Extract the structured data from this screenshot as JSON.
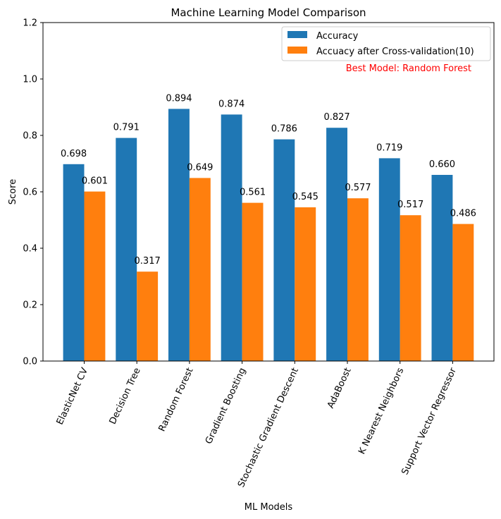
{
  "chart_data": {
    "type": "bar",
    "title": "Machine Learning Model Comparison",
    "xlabel": "ML Models",
    "ylabel": "Score",
    "ylim": [
      0,
      1.2
    ],
    "yticks": [
      "0.0",
      "0.2",
      "0.4",
      "0.6",
      "0.8",
      "1.0",
      "1.2"
    ],
    "grid": false,
    "legend_position": "top-right",
    "categories": [
      "ElasticNet CV",
      "Decision Tree",
      "Random Forest",
      "Gradient Boosting",
      "Stochastic Gradient Descent",
      "AdaBoost",
      "K Nearest Neighbors",
      "Support Vector Regressor"
    ],
    "series": [
      {
        "name": "Accuracy",
        "color": "#1f77b4",
        "values": [
          0.698,
          0.791,
          0.894,
          0.874,
          0.786,
          0.827,
          0.719,
          0.66
        ],
        "labels": [
          "0.698",
          "0.791",
          "0.894",
          "0.874",
          "0.786",
          "0.827",
          "0.719",
          "0.660"
        ]
      },
      {
        "name": "Accuacy after Cross-validation(10)",
        "color": "#ff7f0e",
        "values": [
          0.601,
          0.317,
          0.649,
          0.561,
          0.545,
          0.577,
          0.517,
          0.486
        ],
        "labels": [
          "0.601",
          "0.317",
          "0.649",
          "0.561",
          "0.545",
          "0.577",
          "0.517",
          "0.486"
        ]
      }
    ],
    "annotation": {
      "text": "Best Model: Random Forest",
      "color": "#ff0000"
    }
  }
}
